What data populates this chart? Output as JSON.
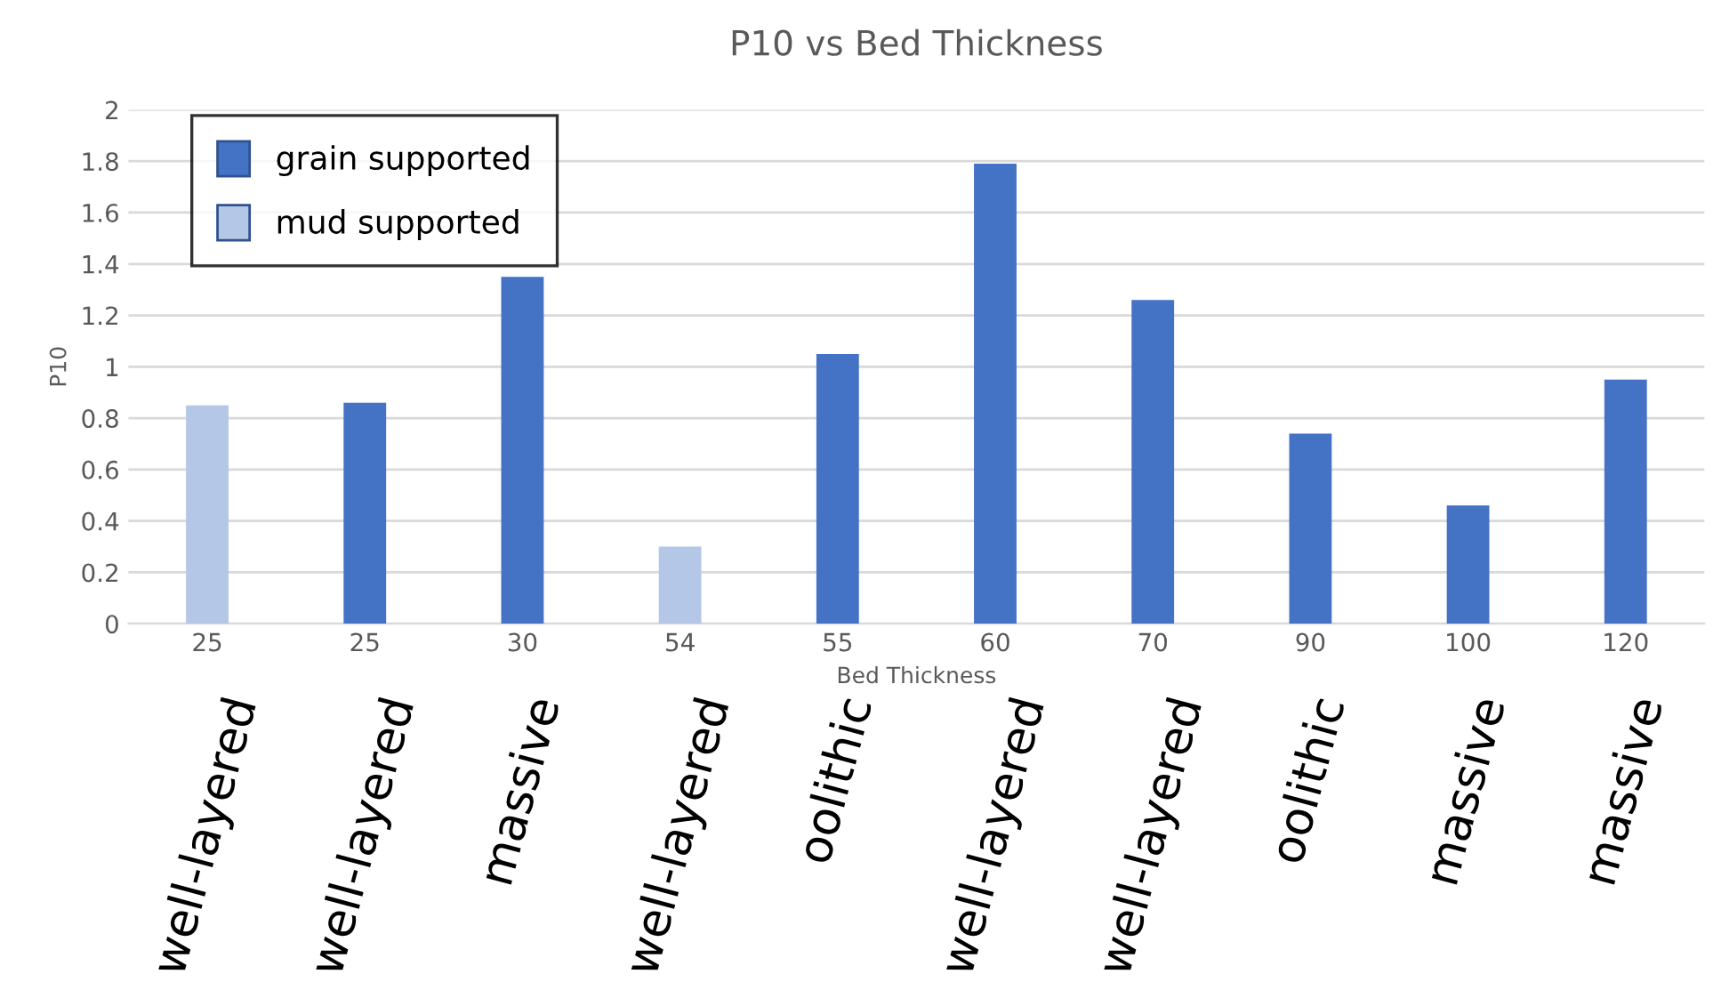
{
  "chart_data": {
    "type": "bar",
    "title": "P10 vs Bed Thickness",
    "xlabel": "Bed Thickness",
    "ylabel": "P10",
    "categories": [
      "25",
      "25",
      "30",
      "54",
      "55",
      "60",
      "70",
      "90",
      "100",
      "120"
    ],
    "series": [
      {
        "name": "grain supported",
        "color": "#4472c4",
        "values": [
          null,
          0.86,
          1.35,
          null,
          1.05,
          1.79,
          1.26,
          0.74,
          0.46,
          0.95
        ]
      },
      {
        "name": "mud supported",
        "color": "#b4c7e7",
        "values": [
          0.85,
          null,
          null,
          0.3,
          null,
          null,
          null,
          null,
          null,
          null
        ]
      }
    ],
    "annotations": [
      "well-layered",
      "well-layered",
      "massive",
      "well-layered",
      "oolithic",
      "well-layered",
      "well-layered",
      "oolithic",
      "massive",
      "massive"
    ],
    "ylim": [
      0,
      2
    ],
    "yticks": [
      0,
      {
        "value": 0.2,
        "label": "0.2"
      },
      {
        "value": 0.4,
        "label": "0.4"
      },
      {
        "value": 0.6,
        "label": "0.6"
      },
      {
        "value": 0.8,
        "label": "0.8"
      },
      1,
      {
        "value": 1.2,
        "label": "1.2"
      },
      {
        "value": 1.4,
        "label": "1.4"
      },
      {
        "value": 1.6,
        "label": "1.6"
      },
      {
        "value": 1.8,
        "label": "1.8"
      },
      2
    ],
    "grid": "y",
    "legend": "top left"
  }
}
